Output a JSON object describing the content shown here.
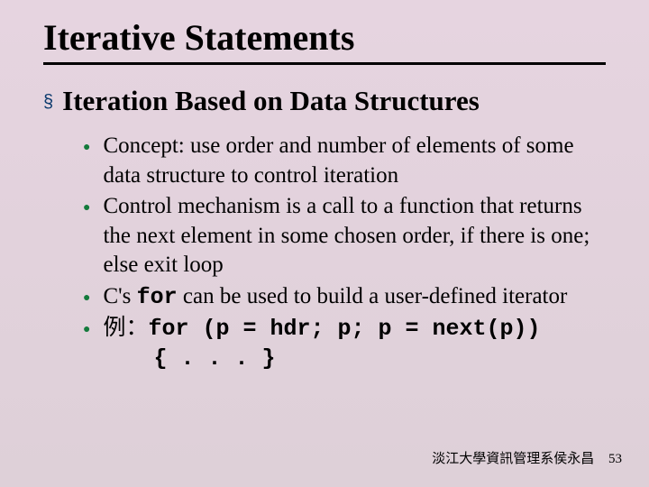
{
  "title": "Iterative Statements",
  "section": {
    "bullet_glyph": "§",
    "heading": "Iteration Based on Data Structures"
  },
  "items": [
    {
      "text_parts": [
        {
          "t": "Concept: use order and number of elements of some data structure to control iteration",
          "mono": false
        }
      ]
    },
    {
      "text_parts": [
        {
          "t": "Control mechanism is a call to a function that returns the next element in some chosen order, if there is one; else exit loop",
          "mono": false
        }
      ]
    },
    {
      "text_parts": [
        {
          "t": "C's ",
          "mono": false
        },
        {
          "t": "for",
          "mono": true
        },
        {
          "t": " can be used to build a user-defined iterator",
          "mono": false
        }
      ]
    },
    {
      "text_parts": [
        {
          "t": "例：",
          "mono": false
        },
        {
          "t": "for (p = hdr; p; p = next(p))",
          "mono": true
        }
      ],
      "trailing_code": "{ . . . }"
    }
  ],
  "colors": {
    "bullet_dot": "#147a3c",
    "section_bullet": "#0b3a6d",
    "rule": "#000000",
    "bg_top": "#e6d4e0",
    "bg_bottom": "#ded0d8"
  },
  "footer": {
    "credit": "淡江大學資訊管理系侯永昌",
    "page": "53"
  }
}
